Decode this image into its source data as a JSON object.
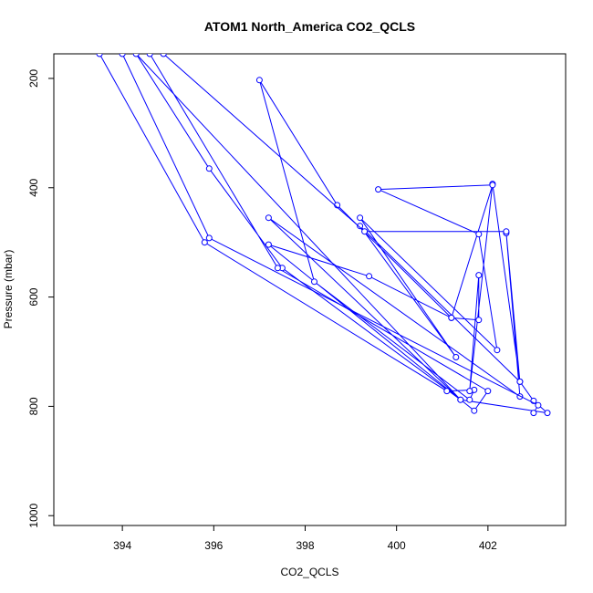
{
  "chart_data": {
    "type": "line",
    "title": "ATOM1 North_America CO2_QCLS",
    "xlabel": "CO2_QCLS",
    "ylabel": "Pressure (mbar)",
    "xlim": [
      392.5,
      403.7
    ],
    "ylim": [
      1018,
      155
    ],
    "y_reversed": true,
    "x_ticks": [
      394,
      396,
      398,
      400,
      402
    ],
    "y_ticks": [
      200,
      400,
      600,
      800,
      1000
    ],
    "grid": false,
    "legend": "none",
    "color": "#0000ff",
    "series": [
      {
        "points": [
          [
            393.5,
            155
          ],
          [
            395.8,
            500
          ],
          [
            401.1,
            772
          ],
          [
            401.7,
            770
          ],
          [
            401.6,
            788
          ],
          [
            398.2,
            572
          ],
          [
            397.0,
            203
          ],
          [
            398.7,
            432
          ],
          [
            401.2,
            638
          ],
          [
            401.8,
            642
          ],
          [
            401.8,
            560
          ],
          [
            401.6,
            772
          ],
          [
            402.1,
            393
          ],
          [
            402.7,
            755
          ],
          [
            403.0,
            790
          ],
          [
            403.3,
            812
          ],
          [
            401.4,
            788
          ],
          [
            397.5,
            547
          ],
          [
            395.9,
            365
          ],
          [
            394.3,
            155
          ],
          [
            401.4,
            788
          ],
          [
            397.2,
            455
          ],
          [
            402.7,
            782
          ],
          [
            402.4,
            483
          ],
          [
            402.7,
            755
          ],
          [
            399.2,
            470
          ],
          [
            401.3,
            710
          ],
          [
            399.2,
            455
          ],
          [
            402.2,
            697
          ],
          [
            401.8,
            485
          ],
          [
            399.6,
            403
          ],
          [
            402.1,
            395
          ],
          [
            401.2,
            638
          ],
          [
            399.4,
            562
          ],
          [
            397.2,
            504
          ],
          [
            401.7,
            808
          ],
          [
            402.0,
            772
          ],
          [
            397.4,
            547
          ],
          [
            394.6,
            155
          ]
        ]
      },
      {
        "points": [
          [
            394.0,
            155
          ],
          [
            395.9,
            492
          ],
          [
            403.1,
            798
          ],
          [
            403.0,
            812
          ]
        ]
      },
      {
        "points": [
          [
            394.9,
            155
          ],
          [
            399.3,
            480
          ],
          [
            402.4,
            480
          ]
        ]
      }
    ]
  }
}
